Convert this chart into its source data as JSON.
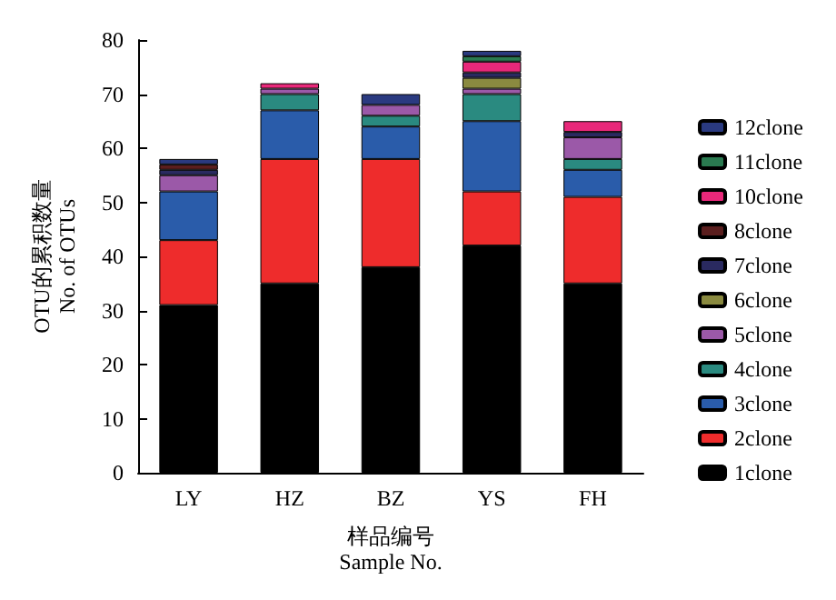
{
  "chart_data": {
    "type": "bar",
    "stacked": true,
    "xlabel": "样品编号\nSample No.",
    "ylabel": "OTU的累积数量\nNo. of OTUs",
    "categories": [
      "LY",
      "HZ",
      "BZ",
      "YS",
      "FH"
    ],
    "ylim": [
      0,
      80
    ],
    "yticks": [
      0,
      10,
      20,
      30,
      40,
      50,
      60,
      70,
      80
    ],
    "grid": false,
    "legend": "right",
    "series": [
      {
        "name": "1clone",
        "color": "#000000",
        "values": [
          31,
          35,
          38,
          42,
          35
        ]
      },
      {
        "name": "2clone",
        "color": "#ee2c2c",
        "values": [
          12,
          23,
          20,
          10,
          16
        ]
      },
      {
        "name": "3clone",
        "color": "#2a5caa",
        "values": [
          9,
          9,
          6,
          13,
          5
        ]
      },
      {
        "name": "4clone",
        "color": "#2a8a80",
        "values": [
          null,
          3,
          2,
          5,
          2
        ]
      },
      {
        "name": "5clone",
        "color": "#9b59a8",
        "values": [
          3,
          1,
          2,
          1,
          4
        ]
      },
      {
        "name": "6clone",
        "color": "#8a8a40",
        "values": [
          null,
          null,
          null,
          2,
          null
        ]
      },
      {
        "name": "7clone",
        "color": "#2a2a60",
        "values": [
          1,
          null,
          null,
          1,
          1
        ]
      },
      {
        "name": "8clone",
        "color": "#5a1e1e",
        "values": [
          1,
          null,
          null,
          null,
          null
        ]
      },
      {
        "name": "10clone",
        "color": "#e8287a",
        "values": [
          null,
          1,
          null,
          2,
          2
        ]
      },
      {
        "name": "11clone",
        "color": "#2a7a50",
        "values": [
          null,
          null,
          null,
          1,
          null
        ]
      },
      {
        "name": "12clone",
        "color": "#2a3a80",
        "values": [
          1,
          null,
          2,
          1,
          null
        ]
      }
    ]
  }
}
